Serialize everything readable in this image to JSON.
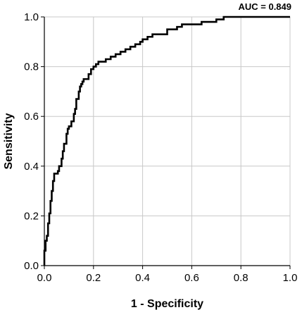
{
  "chart_data": {
    "type": "line",
    "title": "",
    "xlabel": "1 - Specificity",
    "ylabel": "Sensitivity",
    "xlim": [
      0,
      1
    ],
    "ylim": [
      0,
      1
    ],
    "x_ticks": [
      "0.0",
      "0.2",
      "0.4",
      "0.6",
      "0.8",
      "1.0"
    ],
    "y_ticks": [
      "0.0",
      "0.2",
      "0.4",
      "0.6",
      "0.8",
      "1.0"
    ],
    "grid": true,
    "annotation": "AUC = 0.849",
    "series": [
      {
        "color": "#000000",
        "x": [
          0.0,
          0.0,
          0.005,
          0.005,
          0.01,
          0.01,
          0.015,
          0.015,
          0.02,
          0.02,
          0.025,
          0.025,
          0.03,
          0.03,
          0.035,
          0.035,
          0.04,
          0.04,
          0.055,
          0.055,
          0.06,
          0.06,
          0.07,
          0.07,
          0.075,
          0.075,
          0.08,
          0.08,
          0.09,
          0.09,
          0.095,
          0.095,
          0.1,
          0.1,
          0.11,
          0.11,
          0.12,
          0.12,
          0.125,
          0.125,
          0.13,
          0.13,
          0.14,
          0.14,
          0.145,
          0.145,
          0.15,
          0.15,
          0.155,
          0.155,
          0.16,
          0.16,
          0.18,
          0.18,
          0.19,
          0.19,
          0.2,
          0.2,
          0.21,
          0.21,
          0.22,
          0.22,
          0.25,
          0.25,
          0.27,
          0.27,
          0.29,
          0.29,
          0.31,
          0.31,
          0.33,
          0.33,
          0.35,
          0.35,
          0.37,
          0.37,
          0.39,
          0.39,
          0.4,
          0.4,
          0.42,
          0.42,
          0.44,
          0.44,
          0.5,
          0.5,
          0.54,
          0.54,
          0.56,
          0.56,
          0.64,
          0.64,
          0.7,
          0.7,
          0.73,
          0.73,
          0.76,
          0.76,
          1.0
        ],
        "y": [
          0.0,
          0.06,
          0.06,
          0.1,
          0.1,
          0.12,
          0.12,
          0.17,
          0.17,
          0.21,
          0.21,
          0.26,
          0.26,
          0.3,
          0.3,
          0.34,
          0.34,
          0.37,
          0.37,
          0.38,
          0.38,
          0.4,
          0.4,
          0.43,
          0.43,
          0.46,
          0.46,
          0.49,
          0.49,
          0.53,
          0.53,
          0.55,
          0.55,
          0.56,
          0.56,
          0.58,
          0.58,
          0.61,
          0.61,
          0.63,
          0.63,
          0.67,
          0.67,
          0.7,
          0.7,
          0.72,
          0.72,
          0.73,
          0.73,
          0.74,
          0.74,
          0.75,
          0.75,
          0.77,
          0.77,
          0.79,
          0.79,
          0.8,
          0.8,
          0.81,
          0.81,
          0.82,
          0.82,
          0.83,
          0.83,
          0.84,
          0.84,
          0.85,
          0.85,
          0.86,
          0.86,
          0.87,
          0.87,
          0.88,
          0.88,
          0.89,
          0.89,
          0.9,
          0.9,
          0.91,
          0.91,
          0.92,
          0.92,
          0.93,
          0.93,
          0.95,
          0.95,
          0.96,
          0.96,
          0.97,
          0.97,
          0.98,
          0.98,
          0.99,
          0.99,
          1.0,
          1.0,
          1.0,
          1.0
        ]
      }
    ]
  }
}
